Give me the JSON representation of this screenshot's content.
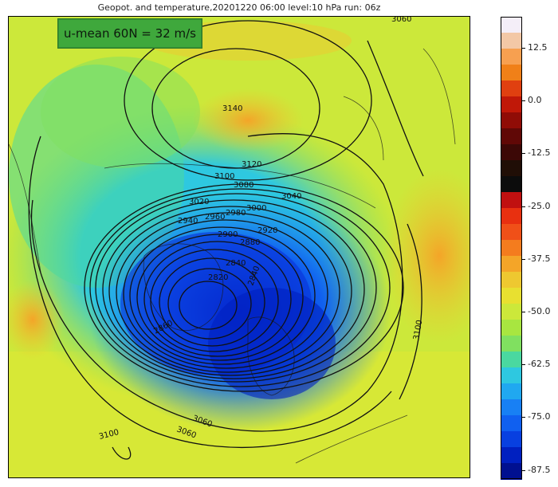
{
  "title": "Geopot. and temperature,20201220 06:00 level:10 hPa run: 06z",
  "annotation": {
    "text": "u-mean 60N = 32 m/s",
    "color": "#3fa83c"
  },
  "contour_labels": [
    {
      "id": "c3140",
      "text": "3140"
    },
    {
      "id": "c3120",
      "text": "3120"
    },
    {
      "id": "c3100a",
      "text": "3100"
    },
    {
      "id": "c3080",
      "text": "3080"
    },
    {
      "id": "c3060a",
      "text": "3060"
    },
    {
      "id": "c3040",
      "text": "3040"
    },
    {
      "id": "c3020",
      "text": "3020"
    },
    {
      "id": "c3000",
      "text": "3000"
    },
    {
      "id": "c2980",
      "text": "2980"
    },
    {
      "id": "c2960",
      "text": "2960"
    },
    {
      "id": "c2940",
      "text": "2940"
    },
    {
      "id": "c2920",
      "text": "2920"
    },
    {
      "id": "c2900",
      "text": "2900"
    },
    {
      "id": "c2880",
      "text": "2880"
    },
    {
      "id": "c2860",
      "text": "2860"
    },
    {
      "id": "c2840",
      "text": "2840"
    },
    {
      "id": "c2820",
      "text": "2820"
    },
    {
      "id": "c2840b",
      "text": "2840"
    },
    {
      "id": "c3100b",
      "text": "3100"
    },
    {
      "id": "c3060b",
      "text": "3060"
    },
    {
      "id": "c3100c",
      "text": "3100"
    },
    {
      "id": "c3060c",
      "text": "3060"
    }
  ],
  "colorbar": {
    "ticks": [
      "12.5",
      "0.0",
      "-12.5",
      "-25.0",
      "-37.5",
      "-50.0",
      "-62.5",
      "-75.0",
      "-87.5"
    ],
    "colors_top_to_bottom": [
      "#f4eef8",
      "#f3c8a6",
      "#f7a050",
      "#f08018",
      "#e04010",
      "#c01808",
      "#900c06",
      "#600806",
      "#3c0806",
      "#200e06",
      "#0c0c0c",
      "#c01010",
      "#e83010",
      "#f05018",
      "#f47c1e",
      "#f4a528",
      "#eec830",
      "#e8e030",
      "#cce83a",
      "#a8e640",
      "#80e060",
      "#4ad8a0",
      "#2ec8e0",
      "#20a8f0",
      "#1880f4",
      "#1060f0",
      "#0840e0",
      "#0020c0",
      "#001090"
    ]
  }
}
